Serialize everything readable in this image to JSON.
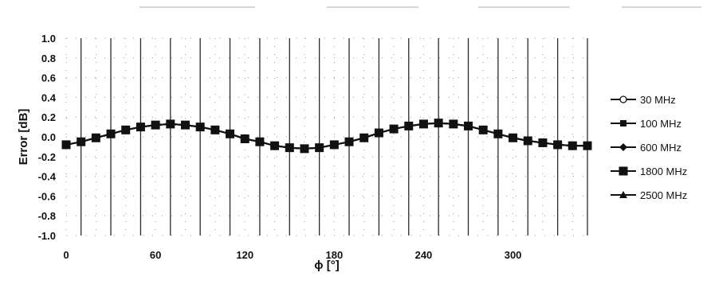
{
  "chart_data": {
    "type": "line",
    "xlabel": "ϕ [°]",
    "ylabel": "Error [dB]",
    "xlim": [
      0,
      350
    ],
    "ylim": [
      -1.0,
      1.0
    ],
    "x_ticks": [
      "0",
      "60",
      "120",
      "180",
      "240",
      "300"
    ],
    "x_tick_values": [
      0,
      60,
      120,
      180,
      240,
      300
    ],
    "y_ticks": [
      "1.0",
      "0.8",
      "0.6",
      "0.4",
      "0.2",
      "0.0",
      "-0.2",
      "-0.4",
      "-0.6",
      "-0.8",
      "-1.0"
    ],
    "y_tick_values": [
      1.0,
      0.8,
      0.6,
      0.4,
      0.2,
      0.0,
      -0.2,
      -0.4,
      -0.6,
      -0.8,
      -1.0
    ],
    "vertical_gridlines_deg": [
      10,
      30,
      50,
      70,
      90,
      110,
      130,
      150,
      170,
      190,
      210,
      230,
      250,
      270,
      290,
      310,
      330,
      350
    ],
    "legend_position": "right",
    "grid": "vertical solid lines with dotted minor grid",
    "x": [
      0,
      10,
      20,
      30,
      40,
      50,
      60,
      70,
      80,
      90,
      100,
      110,
      120,
      130,
      140,
      150,
      160,
      170,
      180,
      190,
      200,
      210,
      220,
      230,
      240,
      250,
      260,
      270,
      280,
      290,
      300,
      310,
      320,
      330,
      340,
      350
    ],
    "series": [
      {
        "name": "30 MHz",
        "marker": "circle-open",
        "values": [
          -0.08,
          -0.05,
          -0.01,
          0.03,
          0.07,
          0.1,
          0.12,
          0.13,
          0.12,
          0.1,
          0.07,
          0.03,
          -0.02,
          -0.05,
          -0.09,
          -0.11,
          -0.12,
          -0.11,
          -0.08,
          -0.05,
          -0.01,
          0.04,
          0.08,
          0.11,
          0.13,
          0.14,
          0.13,
          0.11,
          0.07,
          0.03,
          -0.01,
          -0.04,
          -0.06,
          -0.08,
          -0.09,
          -0.09
        ]
      },
      {
        "name": "100 MHz",
        "marker": "square-filled",
        "values": [
          -0.08,
          -0.05,
          -0.01,
          0.03,
          0.07,
          0.1,
          0.12,
          0.13,
          0.12,
          0.1,
          0.07,
          0.03,
          -0.02,
          -0.05,
          -0.09,
          -0.11,
          -0.12,
          -0.11,
          -0.08,
          -0.05,
          -0.01,
          0.04,
          0.08,
          0.11,
          0.13,
          0.14,
          0.13,
          0.11,
          0.07,
          0.03,
          -0.01,
          -0.04,
          -0.06,
          -0.08,
          -0.09,
          -0.09
        ]
      },
      {
        "name": "600 MHz",
        "marker": "diamond-filled",
        "values": [
          -0.08,
          -0.05,
          -0.01,
          0.03,
          0.07,
          0.1,
          0.12,
          0.13,
          0.12,
          0.1,
          0.07,
          0.03,
          -0.02,
          -0.05,
          -0.09,
          -0.11,
          -0.12,
          -0.11,
          -0.08,
          -0.05,
          -0.01,
          0.04,
          0.08,
          0.11,
          0.13,
          0.14,
          0.13,
          0.11,
          0.07,
          0.03,
          -0.01,
          -0.04,
          -0.06,
          -0.08,
          -0.09,
          -0.09
        ]
      },
      {
        "name": "1800 MHz",
        "marker": "square-filled-large",
        "values": [
          -0.08,
          -0.05,
          -0.01,
          0.03,
          0.07,
          0.1,
          0.12,
          0.13,
          0.12,
          0.1,
          0.07,
          0.03,
          -0.02,
          -0.05,
          -0.09,
          -0.11,
          -0.12,
          -0.11,
          -0.08,
          -0.05,
          -0.01,
          0.04,
          0.08,
          0.11,
          0.13,
          0.14,
          0.13,
          0.11,
          0.07,
          0.03,
          -0.01,
          -0.04,
          -0.06,
          -0.08,
          -0.09,
          -0.09
        ]
      },
      {
        "name": "2500 MHz",
        "marker": "triangle-filled",
        "values": [
          -0.08,
          -0.05,
          -0.01,
          0.03,
          0.07,
          0.1,
          0.12,
          0.13,
          0.12,
          0.1,
          0.07,
          0.03,
          -0.02,
          -0.05,
          -0.09,
          -0.11,
          -0.12,
          -0.11,
          -0.08,
          -0.05,
          -0.01,
          0.04,
          0.08,
          0.11,
          0.13,
          0.14,
          0.13,
          0.11,
          0.07,
          0.03,
          -0.01,
          -0.04,
          -0.06,
          -0.08,
          -0.09,
          -0.09
        ]
      }
    ],
    "colors": {
      "line": "#111111",
      "grid": "#2a2a2a",
      "minor_grid": "#9a9a9a"
    }
  }
}
